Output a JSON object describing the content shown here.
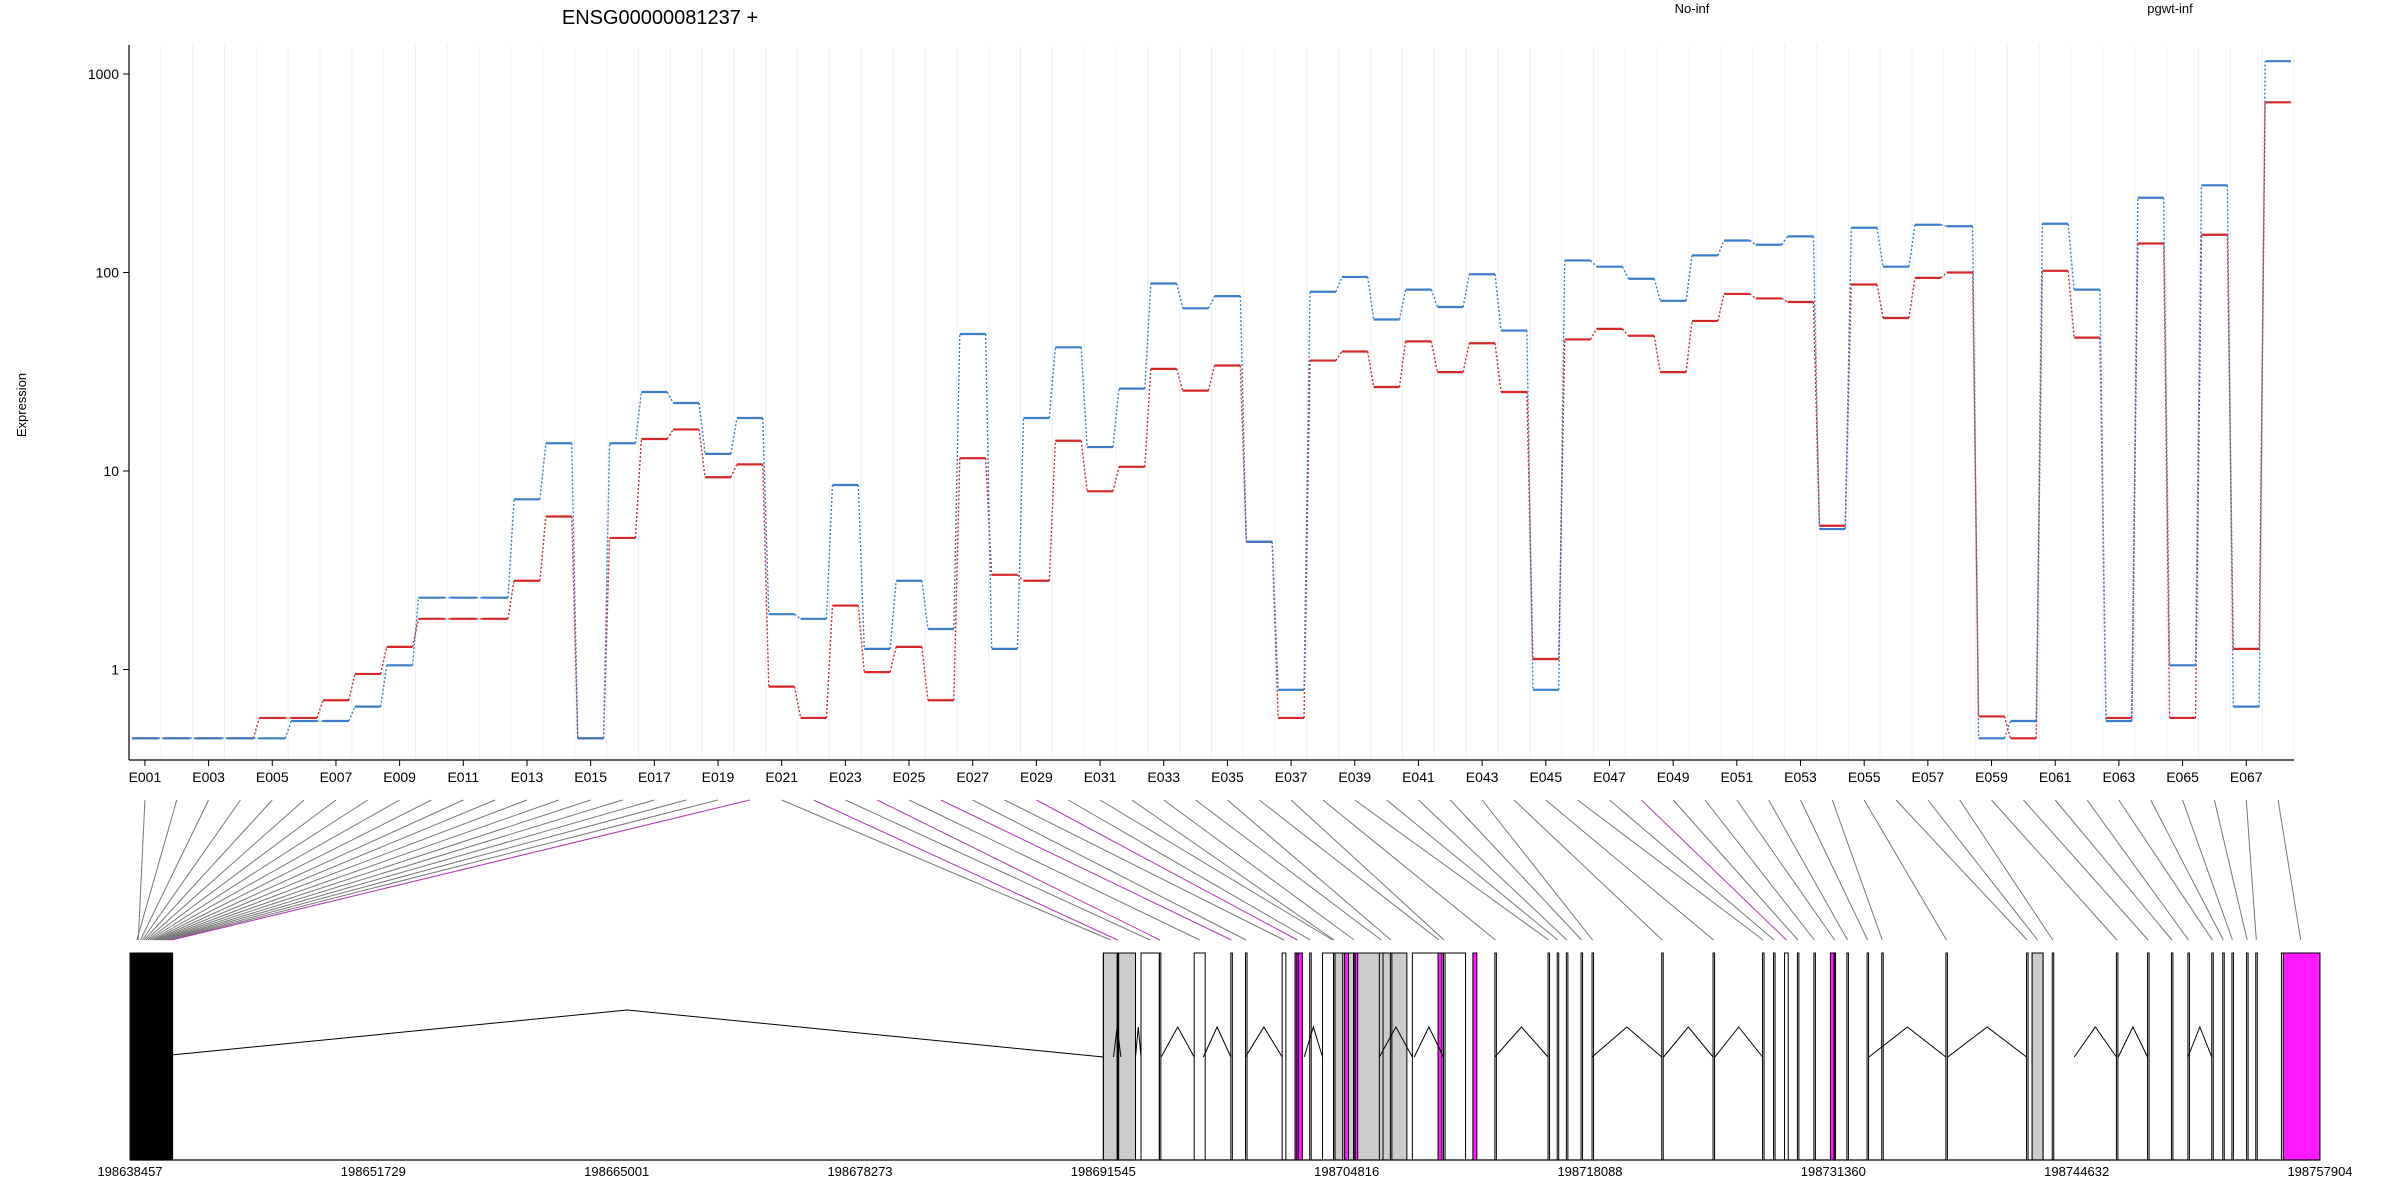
{
  "title": "ENSG00000081237 +",
  "colors": {
    "no_inf": "#d62728",
    "pgwt_inf": "#3a7dc9",
    "purple": "#ff1aff",
    "gray": "#cccccc"
  },
  "chart_data": {
    "type": "line",
    "title": "ENSG00000081237 +",
    "ylabel": "Expression",
    "yscale": "log",
    "ylim": [
      0.35,
      1400
    ],
    "y_ticks": [
      "1",
      "10",
      "100",
      "1000"
    ],
    "x_tick_labels": [
      "E001",
      "E003",
      "E005",
      "E007",
      "E009",
      "E011",
      "E013",
      "E015",
      "E017",
      "E019",
      "E021",
      "E023",
      "E025",
      "E027",
      "E029",
      "E031",
      "E033",
      "E035",
      "E037",
      "E039",
      "E041",
      "E043",
      "E045",
      "E047",
      "E049",
      "E051",
      "E053",
      "E055",
      "E057",
      "E059",
      "E061",
      "E063",
      "E065",
      "E067"
    ],
    "categories": [
      "E001",
      "E002",
      "E003",
      "E004",
      "E005",
      "E006",
      "E007",
      "E008",
      "E009",
      "E010",
      "E011",
      "E012",
      "E013",
      "E014",
      "E015",
      "E016",
      "E017",
      "E018",
      "E019",
      "E020",
      "E021",
      "E022",
      "E023",
      "E024",
      "E025",
      "E026",
      "E027",
      "E028",
      "E029",
      "E030",
      "E031",
      "E032",
      "E033",
      "E034",
      "E035",
      "E036",
      "E037",
      "E038",
      "E039",
      "E040",
      "E041",
      "E042",
      "E043",
      "E044",
      "E045",
      "E046",
      "E047",
      "E048",
      "E049",
      "E050",
      "E051",
      "E052",
      "E053",
      "E054",
      "E055",
      "E056",
      "E057",
      "E058",
      "E059",
      "E060",
      "E061",
      "E062",
      "E063",
      "E064",
      "E065",
      "E066",
      "E067",
      "E068"
    ],
    "legend": [
      "No-inf",
      "pgwt-inf"
    ],
    "legend_placement": "top-right",
    "series": [
      {
        "name": "No-inf",
        "color": "#d62728",
        "values": [
          0.45,
          0.45,
          0.45,
          0.45,
          0.57,
          0.57,
          0.7,
          0.95,
          1.3,
          1.8,
          1.8,
          1.8,
          2.8,
          5.9,
          0.45,
          4.6,
          14.5,
          16.2,
          9.3,
          10.8,
          0.82,
          0.57,
          2.1,
          0.97,
          1.3,
          0.7,
          11.6,
          3.0,
          2.8,
          14.2,
          7.9,
          10.5,
          32.7,
          25.4,
          34.0,
          4.4,
          0.57,
          36.0,
          40.0,
          26.5,
          45.0,
          31.5,
          44.0,
          25.0,
          1.13,
          46.0,
          52.0,
          48.0,
          31.5,
          57.0,
          78.0,
          74.0,
          71.0,
          5.3,
          87.0,
          59.0,
          94.0,
          100.0,
          0.58,
          0.45,
          102.0,
          47.0,
          0.57,
          140.0,
          0.57,
          155.0,
          1.27,
          720.0
        ]
      },
      {
        "name": "pgwt-inf",
        "color": "#3a7dc9",
        "values": [
          0.45,
          0.45,
          0.45,
          0.45,
          0.45,
          0.55,
          0.55,
          0.65,
          1.05,
          2.3,
          2.3,
          2.3,
          7.2,
          13.8,
          0.45,
          13.8,
          25.0,
          22.0,
          12.2,
          18.5,
          1.9,
          1.8,
          8.5,
          1.27,
          2.8,
          1.6,
          49.0,
          1.27,
          18.5,
          42.0,
          13.2,
          26.0,
          88.0,
          66.0,
          76.0,
          4.4,
          0.79,
          80.0,
          95.0,
          58.0,
          82.0,
          67.0,
          98.0,
          51.0,
          0.79,
          115.0,
          107.0,
          93.0,
          72.0,
          122.0,
          145.0,
          138.0,
          152.0,
          5.1,
          168.0,
          107.0,
          174.0,
          171.0,
          0.45,
          0.55,
          176.0,
          82.0,
          0.55,
          238.0,
          1.05,
          275.0,
          0.65,
          1160.0
        ]
      }
    ],
    "genomic_axis_labels": [
      "198638457",
      "198651729",
      "198665001",
      "198678273",
      "198691545",
      "198704816",
      "198718088",
      "198731360",
      "198744632",
      "198757904"
    ],
    "grid": true
  }
}
